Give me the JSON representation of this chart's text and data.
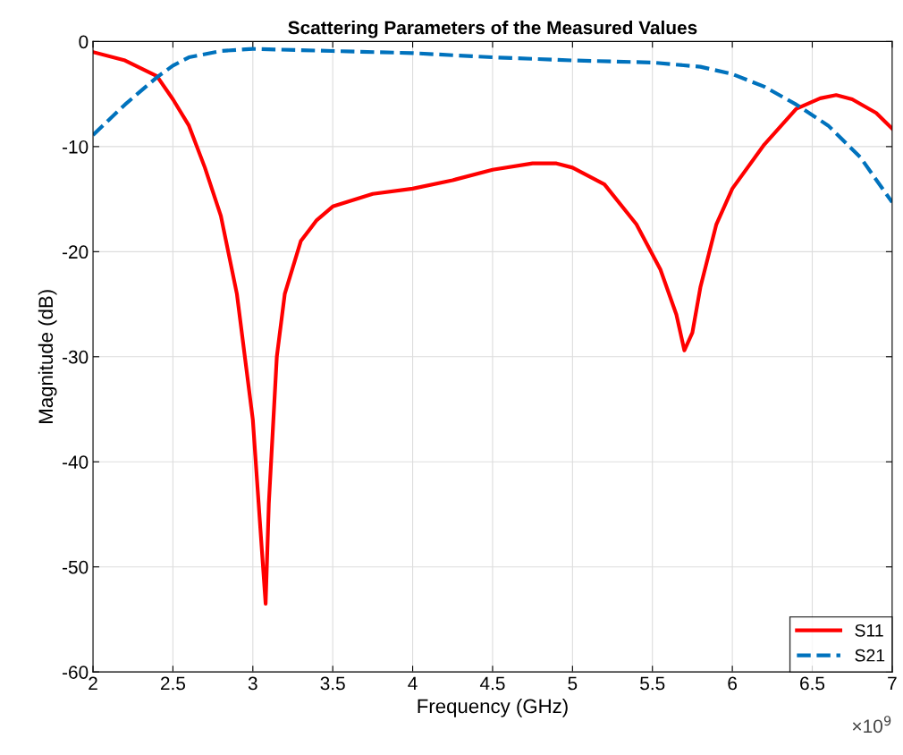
{
  "chart_data": {
    "type": "line",
    "title": "Scattering Parameters of the Measured Values",
    "xlabel": "Frequency (GHz)",
    "ylabel": "Magnitude (dB)",
    "annotations": [
      "×10$^{9}$"
    ],
    "xlim": [
      2,
      7
    ],
    "xticks": [
      2,
      2.5,
      3,
      3.5,
      4,
      4.5,
      5,
      5.5,
      6,
      6.5,
      7
    ],
    "ylim": [
      -60,
      0
    ],
    "yticks": [
      -60,
      -50,
      -40,
      -30,
      -20,
      -10,
      0
    ],
    "grid": true,
    "legend": "bottom right",
    "series": [
      {
        "name": "S11",
        "color": "#ff0000",
        "line_style": "solid",
        "x": [
          2,
          2.2,
          2.4,
          2.5,
          2.6,
          2.7,
          2.8,
          2.9,
          3.0,
          3.05,
          3.08,
          3.1,
          3.15,
          3.2,
          3.3,
          3.4,
          3.5,
          3.75,
          4.0,
          4.25,
          4.5,
          4.75,
          4.9,
          5.0,
          5.2,
          5.4,
          5.55,
          5.65,
          5.7,
          5.75,
          5.8,
          5.9,
          6.0,
          6.2,
          6.4,
          6.55,
          6.65,
          6.75,
          6.9,
          7.0
        ],
        "values": [
          -1,
          -1.8,
          -3.3,
          -5.5,
          -8,
          -12,
          -16.6,
          -24,
          -36,
          -47,
          -53.5,
          -44,
          -30,
          -24,
          -19,
          -17,
          -15.7,
          -14.5,
          -14,
          -13.2,
          -12.2,
          -11.6,
          -11.6,
          -12,
          -13.6,
          -17.4,
          -21.7,
          -26,
          -29.4,
          -27.7,
          -23.4,
          -17.4,
          -14,
          -9.8,
          -6.4,
          -5.4,
          -5.1,
          -5.5,
          -6.8,
          -8.3
        ]
      },
      {
        "name": "S21",
        "color": "#0072bd",
        "line_style": "dashed",
        "x": [
          2,
          2.2,
          2.4,
          2.5,
          2.6,
          2.8,
          3.0,
          3.5,
          4.0,
          4.5,
          5.0,
          5.5,
          5.8,
          6.0,
          6.2,
          6.4,
          6.6,
          6.8,
          7.0
        ],
        "values": [
          -8.9,
          -6,
          -3.4,
          -2.3,
          -1.5,
          -0.9,
          -0.7,
          -0.9,
          -1.1,
          -1.5,
          -1.8,
          -2.0,
          -2.4,
          -3.1,
          -4.3,
          -6,
          -8,
          -11,
          -15.3
        ]
      }
    ]
  }
}
